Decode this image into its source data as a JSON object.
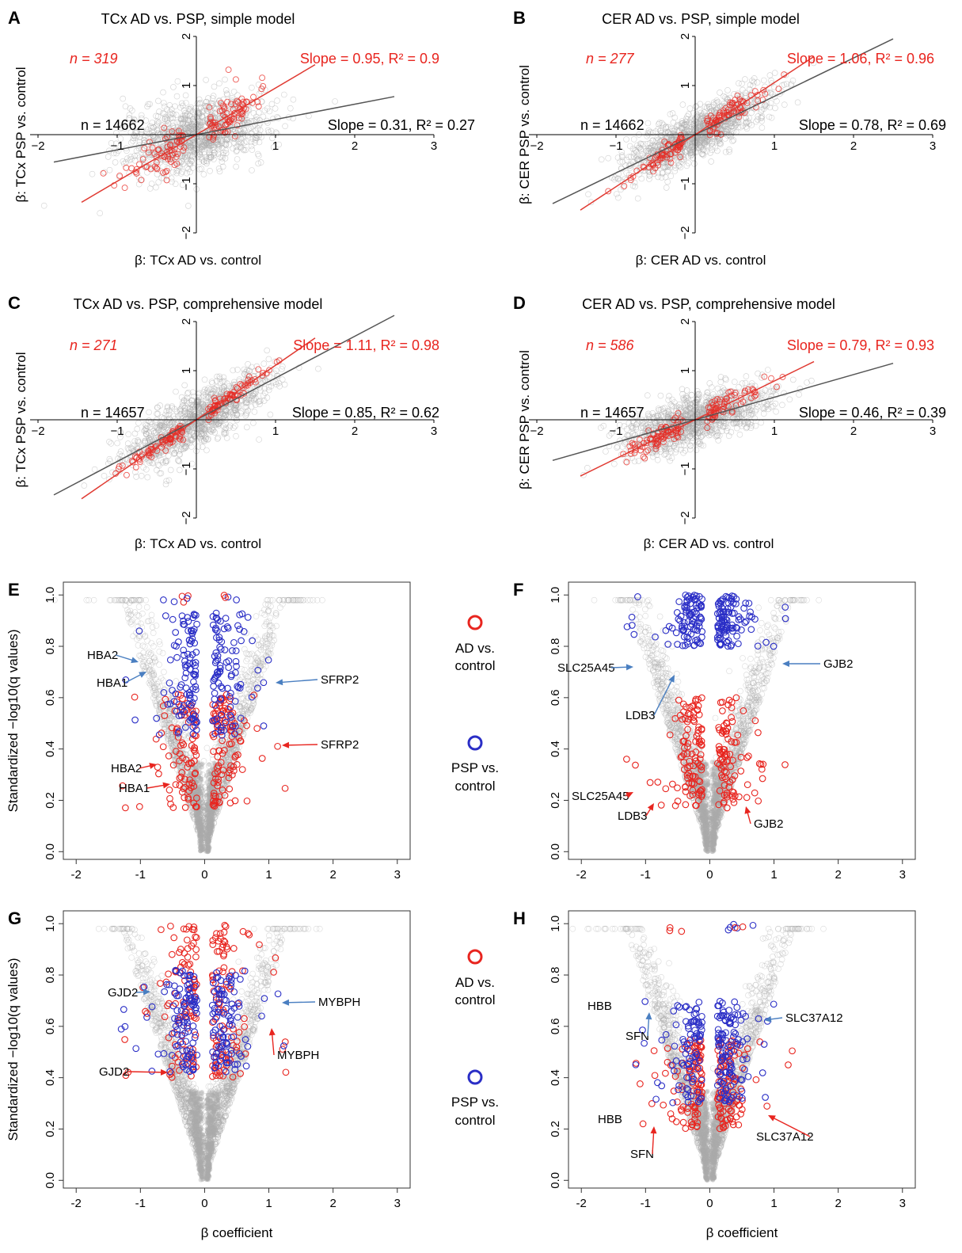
{
  "colors": {
    "ad": "#e8251f",
    "psp": "#2a2ec6",
    "background": "#aaaaaa",
    "fit_all": "#555555",
    "fit_sig": "#e03a32",
    "arrow_blue": "#4a7fc1",
    "arrow_red": "#e8251f"
  },
  "legend": [
    {
      "label_line1": "AD vs.",
      "label_line2": "control",
      "color": "#e8251f"
    },
    {
      "label_line1": "PSP vs.",
      "label_line2": "control",
      "color": "#2a2ec6"
    }
  ],
  "chart_data": [
    {
      "id": "A",
      "type": "scatter",
      "title": "TCx AD vs. PSP, simple model",
      "xlabel": "β: TCx AD vs. control",
      "ylabel": "β: TCx PSP vs. control",
      "xlim": [
        -2,
        3
      ],
      "ylim": [
        -2,
        2
      ],
      "xticks": [
        "−2",
        "−1",
        "1",
        "2",
        "3"
      ],
      "yticks": [
        "−2",
        "−1",
        "1",
        "2"
      ],
      "n_sig": "n = 319",
      "n_all": "n = 14662",
      "sig_fit": "Slope = 0.95, R² = 0.9",
      "all_fit": "Slope = 0.31, R² = 0.27",
      "slope_sig": 0.95,
      "slope_all": 0.31,
      "sig_spread": 0.18,
      "bg_spread": 0.35
    },
    {
      "id": "B",
      "type": "scatter",
      "title": "CER AD vs. PSP, simple model",
      "xlabel": "β: CER AD vs. control",
      "ylabel": "β: CER PSP vs. control",
      "xlim": [
        -2,
        3
      ],
      "ylim": [
        -2,
        2
      ],
      "xticks": [
        "−2",
        "−1",
        "1",
        "2",
        "3"
      ],
      "yticks": [
        "−2",
        "−1",
        "1",
        "2"
      ],
      "n_sig": "n = 277",
      "n_all": "n = 14662",
      "sig_fit": "Slope = 1.06, R² = 0.96",
      "all_fit": "Slope = 0.78, R² = 0.69",
      "slope_sig": 1.06,
      "slope_all": 0.78,
      "sig_spread": 0.12,
      "bg_spread": 0.25
    },
    {
      "id": "C",
      "type": "scatter",
      "title": "TCx AD vs. PSP, comprehensive model",
      "xlabel": "β: TCx AD vs. control",
      "ylabel": "β: TCx PSP vs. control",
      "xlim": [
        -2,
        3
      ],
      "ylim": [
        -2,
        2
      ],
      "xticks": [
        "−2",
        "−1",
        "1",
        "2",
        "3"
      ],
      "yticks": [
        "−2",
        "−1",
        "1",
        "2"
      ],
      "n_sig": "n = 271",
      "n_all": "n = 14657",
      "sig_fit": "Slope = 1.11, R² = 0.98",
      "all_fit": "Slope = 0.85, R² = 0.62",
      "slope_sig": 1.11,
      "slope_all": 0.85,
      "sig_spread": 0.07,
      "bg_spread": 0.28
    },
    {
      "id": "D",
      "type": "scatter",
      "title": "CER AD vs. PSP, comprehensive model",
      "xlabel": "β: CER AD vs. control",
      "ylabel": "β: CER PSP vs. control",
      "xlim": [
        -2,
        3
      ],
      "ylim": [
        -2,
        2
      ],
      "xticks": [
        "−2",
        "−1",
        "1",
        "2",
        "3"
      ],
      "yticks": [
        "−2",
        "−1",
        "1",
        "2"
      ],
      "n_sig": "n = 586",
      "n_all": "n = 14657",
      "sig_fit": "Slope = 0.79, R² = 0.93",
      "all_fit": "Slope = 0.46, R² = 0.39",
      "slope_sig": 0.79,
      "slope_all": 0.46,
      "sig_spread": 0.1,
      "bg_spread": 0.25
    },
    {
      "id": "E",
      "type": "scatter",
      "xlabel": "",
      "ylabel": "Standardized −log10(q values)",
      "xlim": [
        -2.2,
        3.2
      ],
      "ylim": [
        -0.03,
        1.05
      ],
      "xticks": [
        "-2",
        "-1",
        "0",
        "1",
        "2",
        "3"
      ],
      "yticks": [
        "0.0",
        "0.2",
        "0.4",
        "0.6",
        "0.8",
        "1.0"
      ],
      "ad_ymin": 0.17,
      "ad_ymax": 0.62,
      "psp_ymin": 0.45,
      "psp_ymax": 0.93,
      "top_extra": true,
      "genes": [
        {
          "label": "HBA2",
          "series": "psp"
        },
        {
          "label": "HBA1",
          "series": "psp"
        },
        {
          "label": "SFRP2",
          "series": "psp"
        },
        {
          "label": "HBA2",
          "series": "ad"
        },
        {
          "label": "HBA1",
          "series": "ad"
        },
        {
          "label": "SFRP2",
          "series": "ad"
        }
      ]
    },
    {
      "id": "F",
      "type": "scatter",
      "xlabel": "",
      "ylabel": "",
      "xlim": [
        -2.2,
        3.2
      ],
      "ylim": [
        -0.03,
        1.05
      ],
      "xticks": [
        "-2",
        "-1",
        "0",
        "1",
        "2",
        "3"
      ],
      "yticks": [
        "0.0",
        "0.2",
        "0.4",
        "0.6",
        "0.8",
        "1.0"
      ],
      "ad_ymin": 0.17,
      "ad_ymax": 0.6,
      "psp_ymin": 0.8,
      "psp_ymax": 1.0,
      "genes": [
        {
          "label": "SLC25A45",
          "series": "psp"
        },
        {
          "label": "LDB3",
          "series": "psp"
        },
        {
          "label": "GJB2",
          "series": "psp"
        },
        {
          "label": "SLC25A45",
          "series": "ad"
        },
        {
          "label": "LDB3",
          "series": "ad"
        },
        {
          "label": "GJB2",
          "series": "ad"
        }
      ]
    },
    {
      "id": "G",
      "type": "scatter",
      "xlabel": "β coefficient",
      "ylabel": "Standardized −log10(q values)",
      "xlim": [
        -2.2,
        3.2
      ],
      "ylim": [
        -0.03,
        1.05
      ],
      "xticks": [
        "-2",
        "-1",
        "0",
        "1",
        "2",
        "3"
      ],
      "yticks": [
        "0.0",
        "0.2",
        "0.4",
        "0.6",
        "0.8",
        "1.0"
      ],
      "ad_ymin": 0.4,
      "ad_ymax": 1.0,
      "psp_ymin": 0.42,
      "psp_ymax": 0.82,
      "genes": [
        {
          "label": "GJD2",
          "series": "psp"
        },
        {
          "label": "MYBPH",
          "series": "psp"
        },
        {
          "label": "GJD2",
          "series": "ad"
        },
        {
          "label": "MYBPH",
          "series": "ad"
        }
      ]
    },
    {
      "id": "H",
      "type": "scatter",
      "xlabel": "β coefficient",
      "ylabel": "",
      "xlim": [
        -2.2,
        3.2
      ],
      "ylim": [
        -0.03,
        1.05
      ],
      "xticks": [
        "-2",
        "-1",
        "0",
        "1",
        "2",
        "3"
      ],
      "yticks": [
        "0.0",
        "0.2",
        "0.4",
        "0.6",
        "0.8",
        "1.0"
      ],
      "ad_ymin": 0.2,
      "ad_ymax": 0.55,
      "psp_ymin": 0.3,
      "psp_ymax": 0.7,
      "top_extra": true,
      "genes": [
        {
          "label": "HBB",
          "series": "psp"
        },
        {
          "label": "SFN",
          "series": "psp"
        },
        {
          "label": "SLC37A12",
          "series": "psp"
        },
        {
          "label": "HBB",
          "series": "ad"
        },
        {
          "label": "SFN",
          "series": "ad"
        },
        {
          "label": "SLC37A12",
          "series": "ad"
        }
      ]
    }
  ]
}
